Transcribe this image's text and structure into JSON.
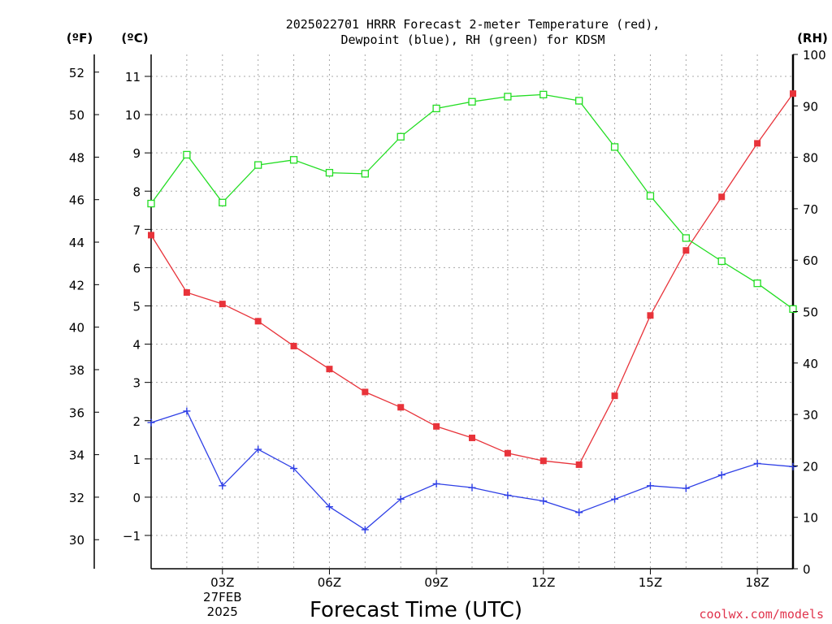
{
  "chart_data": {
    "type": "line",
    "title_line1": "2025022701 HRRR Forecast 2-meter Temperature (red),",
    "title_line2": "Dewpoint (blue), RH (green) for KDSM",
    "unit_f": "(ºF)",
    "unit_c": "(ºC)",
    "unit_rh": "(RH)",
    "xlabel": "Forecast Time (UTC)",
    "credit": "coolwx.com/models",
    "x_hours": [
      1,
      2,
      3,
      4,
      5,
      6,
      7,
      8,
      9,
      10,
      11,
      12,
      13,
      14,
      15,
      16,
      17,
      18,
      19
    ],
    "xlim": [
      1,
      19
    ],
    "x_ticks": [
      {
        "hour": 3,
        "lines": [
          "03Z",
          "27FEB",
          "2025"
        ]
      },
      {
        "hour": 6,
        "lines": [
          "06Z"
        ]
      },
      {
        "hour": 9,
        "lines": [
          "09Z"
        ]
      },
      {
        "hour": 12,
        "lines": [
          "12Z"
        ]
      },
      {
        "hour": 15,
        "lines": [
          "15Z"
        ]
      },
      {
        "hour": 18,
        "lines": [
          "18Z"
        ]
      }
    ],
    "celsius_axis": {
      "lim": [
        -1.9,
        11.5
      ],
      "ticks": [
        -1,
        0,
        1,
        2,
        3,
        4,
        5,
        6,
        7,
        8,
        9,
        10,
        11
      ]
    },
    "fahrenheit_axis": {
      "ticks": [
        30,
        32,
        34,
        36,
        38,
        40,
        42,
        44,
        46,
        48,
        50,
        52
      ]
    },
    "rh_axis": {
      "lim": [
        0,
        100
      ],
      "ticks": [
        0,
        10,
        20,
        30,
        40,
        50,
        60,
        70,
        80,
        90,
        100
      ]
    },
    "grid": true,
    "series": [
      {
        "name": "Temperature",
        "color": "#e8333a",
        "marker": "filled-square",
        "axis": "celsius",
        "values": [
          6.85,
          5.35,
          5.05,
          4.6,
          3.95,
          3.35,
          2.75,
          2.35,
          1.85,
          1.55,
          1.15,
          0.95,
          0.85,
          2.65,
          4.75,
          6.45,
          7.85,
          9.25,
          10.55
        ]
      },
      {
        "name": "Dewpoint",
        "color": "#2e3fe6",
        "marker": "plus",
        "axis": "celsius",
        "values": [
          1.95,
          2.25,
          0.3,
          1.25,
          0.75,
          -0.25,
          -0.85,
          -0.05,
          0.35,
          0.25,
          0.05,
          -0.1,
          -0.4,
          -0.05,
          0.3,
          0.23,
          0.58,
          0.88,
          0.8
        ]
      },
      {
        "name": "RH",
        "color": "#22dd22",
        "marker": "open-square",
        "axis": "rh",
        "values": [
          71,
          80.5,
          71.2,
          78.5,
          79.5,
          77,
          76.8,
          84,
          89.5,
          90.8,
          91.8,
          92.2,
          91,
          82,
          72.5,
          64.3,
          59.8,
          55.5,
          50.5
        ]
      }
    ]
  }
}
